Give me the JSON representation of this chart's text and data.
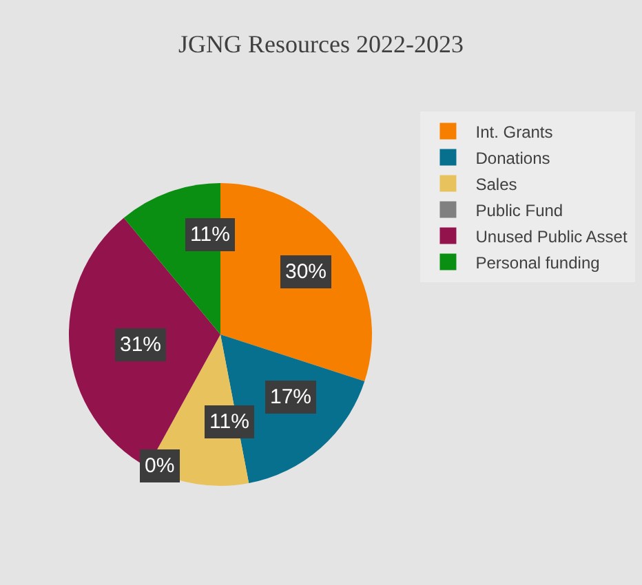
{
  "chart_data": {
    "type": "pie",
    "title": "JGNG Resources 2022-2023",
    "categories": [
      "Int. Grants",
      "Donations",
      "Sales",
      "Public Fund",
      "Unused Public Asset",
      "Personal funding"
    ],
    "values": [
      30,
      17,
      11,
      0,
      31,
      11
    ],
    "value_labels": [
      "30%",
      "17%",
      "11%",
      "0%",
      "31%",
      "11%"
    ],
    "colors": [
      "#f77f00",
      "#08708f",
      "#e8c25c",
      "#808080",
      "#93134c",
      "#0b8f12"
    ],
    "legend": "right"
  }
}
